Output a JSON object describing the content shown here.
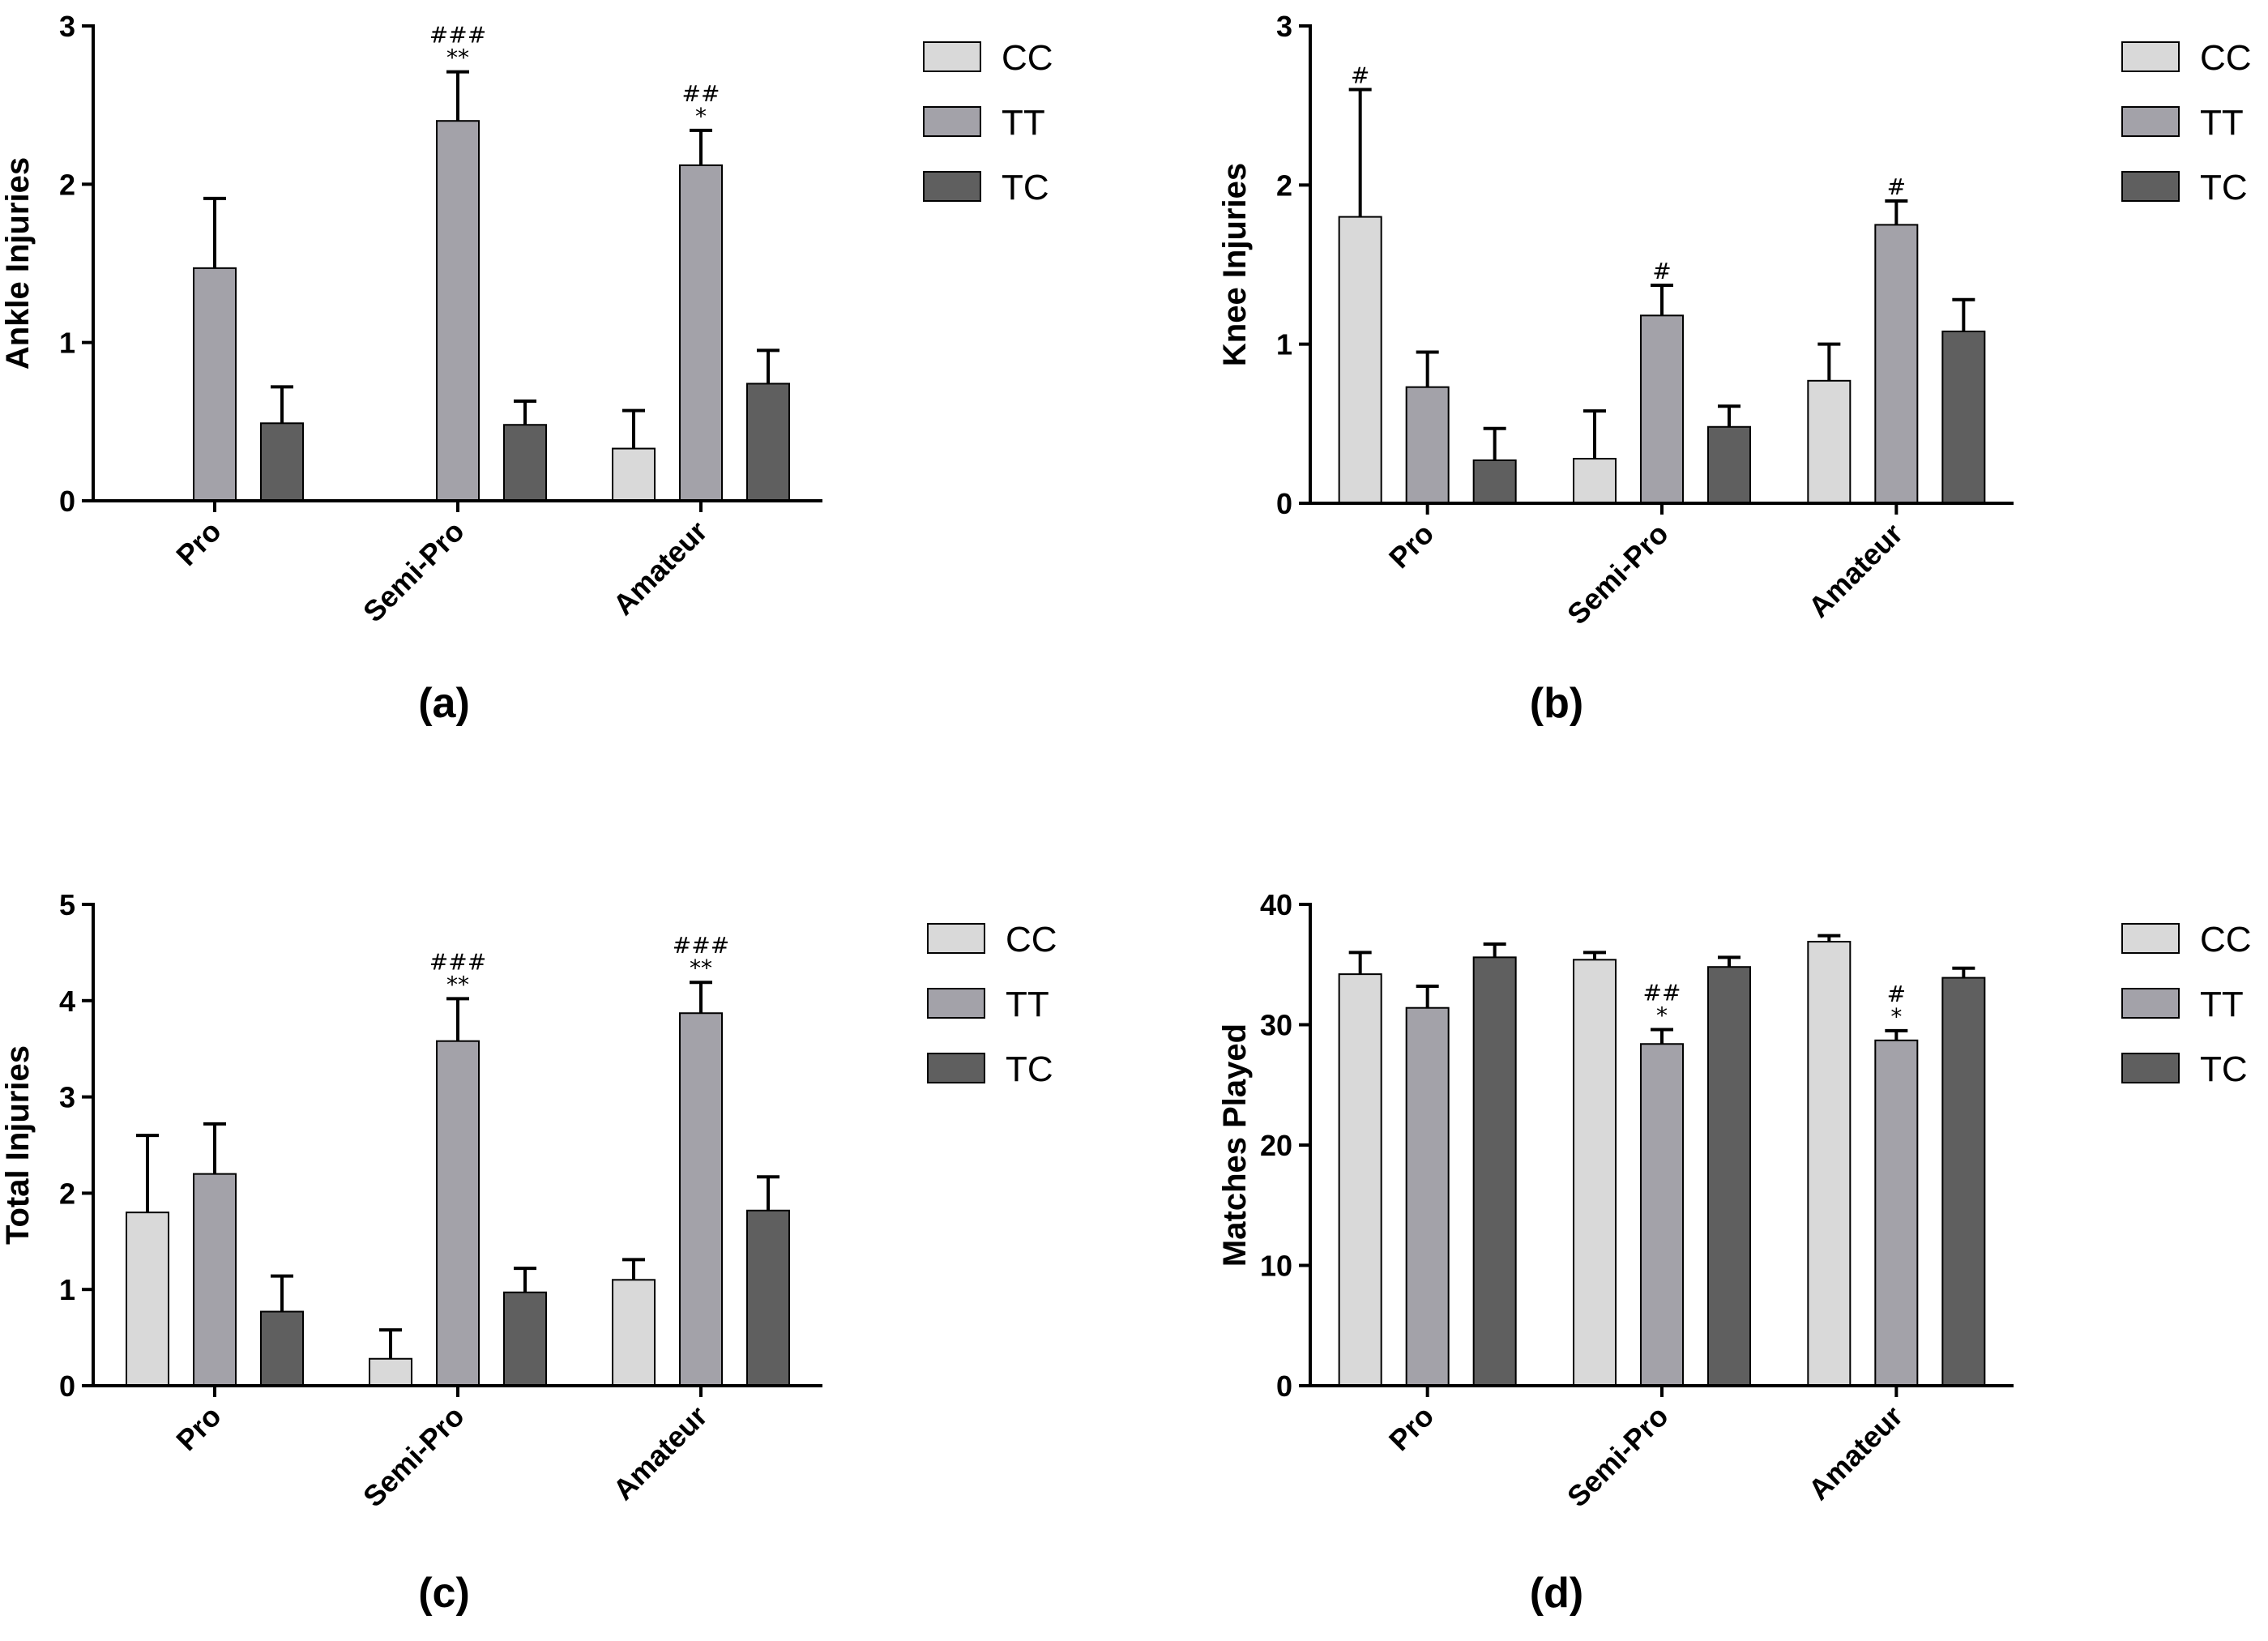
{
  "colors": {
    "CC": "#d9d9d9",
    "TT": "#a3a2a9",
    "TC": "#5f5f5f"
  },
  "chart_data": [
    {
      "type": "bar",
      "caption": "(a)",
      "ylabel": "Ankle Injuries",
      "ylim": [
        0,
        3
      ],
      "yticks": [
        "0",
        "1",
        "2",
        "3"
      ],
      "categories": [
        "Pro",
        "Semi-Pro",
        "Amateur"
      ],
      "series": [
        {
          "name": "CC",
          "values": [
            0,
            0,
            0.33
          ],
          "errors": [
            0,
            0,
            0.24
          ]
        },
        {
          "name": "TT",
          "values": [
            1.47,
            2.4,
            2.12
          ],
          "errors": [
            0.44,
            0.31,
            0.22
          ]
        },
        {
          "name": "TC",
          "values": [
            0.49,
            0.48,
            0.74
          ],
          "errors": [
            0.23,
            0.15,
            0.21
          ]
        }
      ],
      "annotations": [
        {
          "category": 1,
          "series": 1,
          "lines": [
            "###",
            "**"
          ]
        },
        {
          "category": 2,
          "series": 1,
          "lines": [
            "##",
            "*"
          ]
        }
      ]
    },
    {
      "type": "bar",
      "caption": "(b)",
      "ylabel": "Knee Injuries",
      "ylim": [
        0,
        3
      ],
      "yticks": [
        "0",
        "1",
        "2",
        "3"
      ],
      "categories": [
        "Pro",
        "Semi-Pro",
        "Amateur"
      ],
      "series": [
        {
          "name": "CC",
          "values": [
            1.8,
            0.28,
            0.77
          ],
          "errors": [
            0.8,
            0.3,
            0.23
          ]
        },
        {
          "name": "TT",
          "values": [
            0.73,
            1.18,
            1.75
          ],
          "errors": [
            0.22,
            0.19,
            0.15
          ]
        },
        {
          "name": "TC",
          "values": [
            0.27,
            0.48,
            1.08
          ],
          "errors": [
            0.2,
            0.13,
            0.2
          ]
        }
      ],
      "annotations": [
        {
          "category": 0,
          "series": 0,
          "lines": [
            "#"
          ]
        },
        {
          "category": 1,
          "series": 1,
          "lines": [
            "#"
          ]
        },
        {
          "category": 2,
          "series": 1,
          "lines": [
            "#"
          ]
        }
      ]
    },
    {
      "type": "bar",
      "caption": "(c)",
      "ylabel": "Total Injuries",
      "ylim": [
        0,
        5
      ],
      "yticks": [
        "0",
        "1",
        "2",
        "3",
        "4",
        "5"
      ],
      "categories": [
        "Pro",
        "Semi-Pro",
        "Amateur"
      ],
      "series": [
        {
          "name": "CC",
          "values": [
            1.8,
            0.28,
            1.1
          ],
          "errors": [
            0.8,
            0.3,
            0.21
          ]
        },
        {
          "name": "TT",
          "values": [
            2.2,
            3.58,
            3.87
          ],
          "errors": [
            0.52,
            0.44,
            0.32
          ]
        },
        {
          "name": "TC",
          "values": [
            0.77,
            0.97,
            1.82
          ],
          "errors": [
            0.37,
            0.25,
            0.35
          ]
        }
      ],
      "annotations": [
        {
          "category": 1,
          "series": 1,
          "lines": [
            "###",
            "**"
          ]
        },
        {
          "category": 2,
          "series": 1,
          "lines": [
            "###",
            "**"
          ]
        }
      ]
    },
    {
      "type": "bar",
      "caption": "(d)",
      "ylabel": "Matches Played",
      "ylim": [
        0,
        40
      ],
      "yticks": [
        "0",
        "10",
        "20",
        "30",
        "40"
      ],
      "categories": [
        "Pro",
        "Semi-Pro",
        "Amateur"
      ],
      "series": [
        {
          "name": "CC",
          "values": [
            34.2,
            35.4,
            36.9
          ],
          "errors": [
            1.8,
            0.6,
            0.5
          ]
        },
        {
          "name": "TT",
          "values": [
            31.4,
            28.4,
            28.7
          ],
          "errors": [
            1.8,
            1.2,
            0.8
          ]
        },
        {
          "name": "TC",
          "values": [
            35.6,
            34.8,
            33.9
          ],
          "errors": [
            1.1,
            0.8,
            0.8
          ]
        }
      ],
      "annotations": [
        {
          "category": 1,
          "series": 1,
          "lines": [
            "##",
            "*"
          ]
        },
        {
          "category": 2,
          "series": 1,
          "lines": [
            "#",
            "*"
          ]
        }
      ]
    }
  ]
}
